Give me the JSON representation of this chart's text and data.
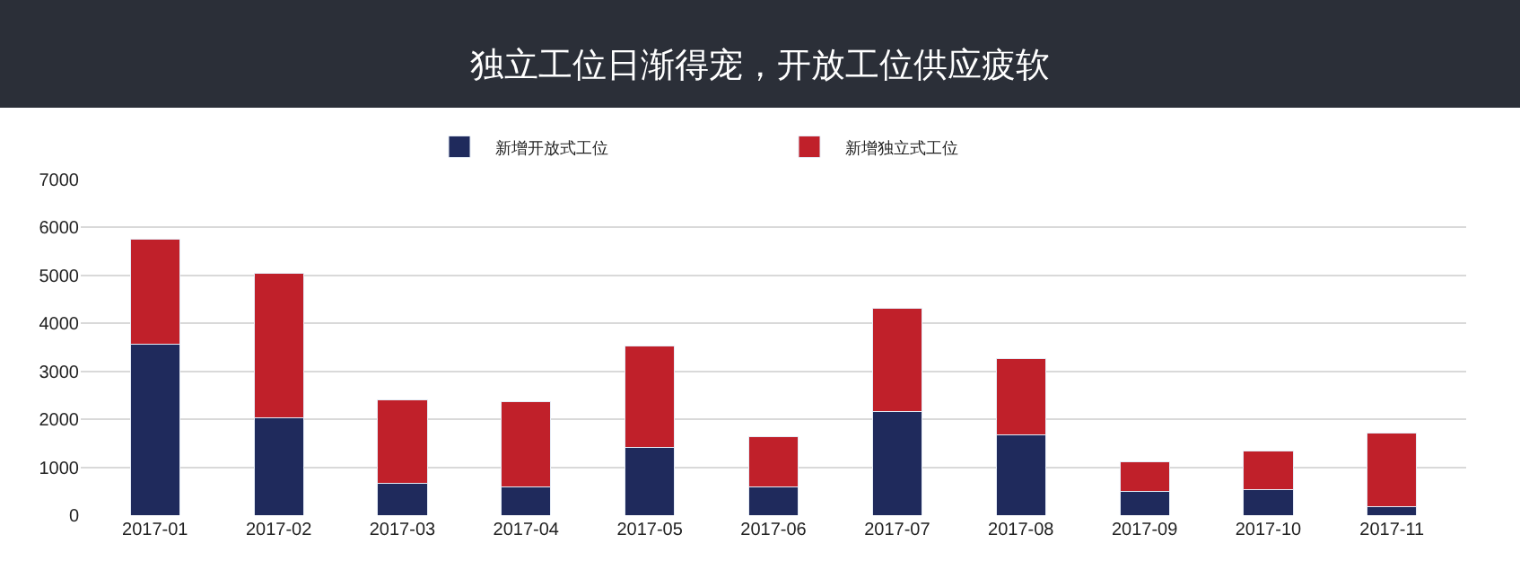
{
  "chart_data": {
    "type": "bar",
    "title": "独立工位日渐得宠，开放工位供应疲软",
    "stacked": true,
    "categories": [
      "2017-01",
      "2017-02",
      "2017-03",
      "2017-04",
      "2017-05",
      "2017-06",
      "2017-07",
      "2017-08",
      "2017-09",
      "2017-10",
      "2017-11"
    ],
    "series": [
      {
        "name": "新增开放式工位",
        "color": "#1f2a5c",
        "values": [
          3570,
          2030,
          670,
          590,
          1410,
          590,
          2170,
          1670,
          490,
          530,
          170
        ]
      },
      {
        "name": "新增独立式工位",
        "color": "#c0202a",
        "values": [
          2190,
          3020,
          1740,
          1780,
          2110,
          1050,
          2150,
          1600,
          620,
          800,
          1540
        ]
      }
    ],
    "ylim": [
      0,
      7000
    ],
    "yticks": [
      0,
      1000,
      2000,
      3000,
      4000,
      5000,
      6000,
      7000
    ],
    "grid": "y",
    "legend": "top"
  }
}
